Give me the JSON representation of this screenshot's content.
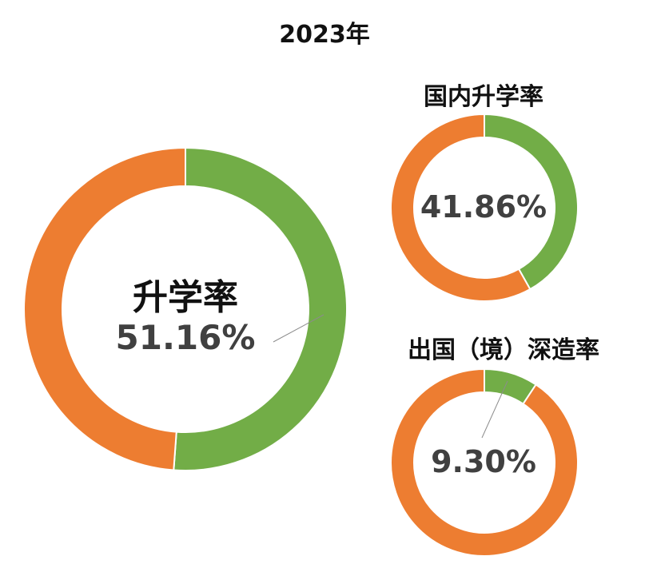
{
  "title": "2023年",
  "colors": {
    "value": "#72ad47",
    "remainder": "#ed7d31",
    "separator": "#ffffff",
    "leader": "#8c8c8c",
    "center_text": "#404040"
  },
  "chart_data": [
    {
      "type": "pie",
      "name": "升学率",
      "title": "升学率",
      "value_label": "51.16%",
      "slices": [
        {
          "label": "升学率",
          "value": 51.16
        },
        {
          "label": "",
          "value": 48.84
        }
      ]
    },
    {
      "type": "pie",
      "name": "国内升学率",
      "title": "国内升学率",
      "value_label": "41.86%",
      "slices": [
        {
          "label": "国内升学率",
          "value": 41.86
        },
        {
          "label": "",
          "value": 58.14
        }
      ]
    },
    {
      "type": "pie",
      "name": "出国（境）深造率",
      "title": "出国（境）深造率",
      "value_label": "9.30%",
      "slices": [
        {
          "label": "出国（境）深造率",
          "value": 9.3
        },
        {
          "label": "",
          "value": 90.7
        }
      ]
    }
  ]
}
